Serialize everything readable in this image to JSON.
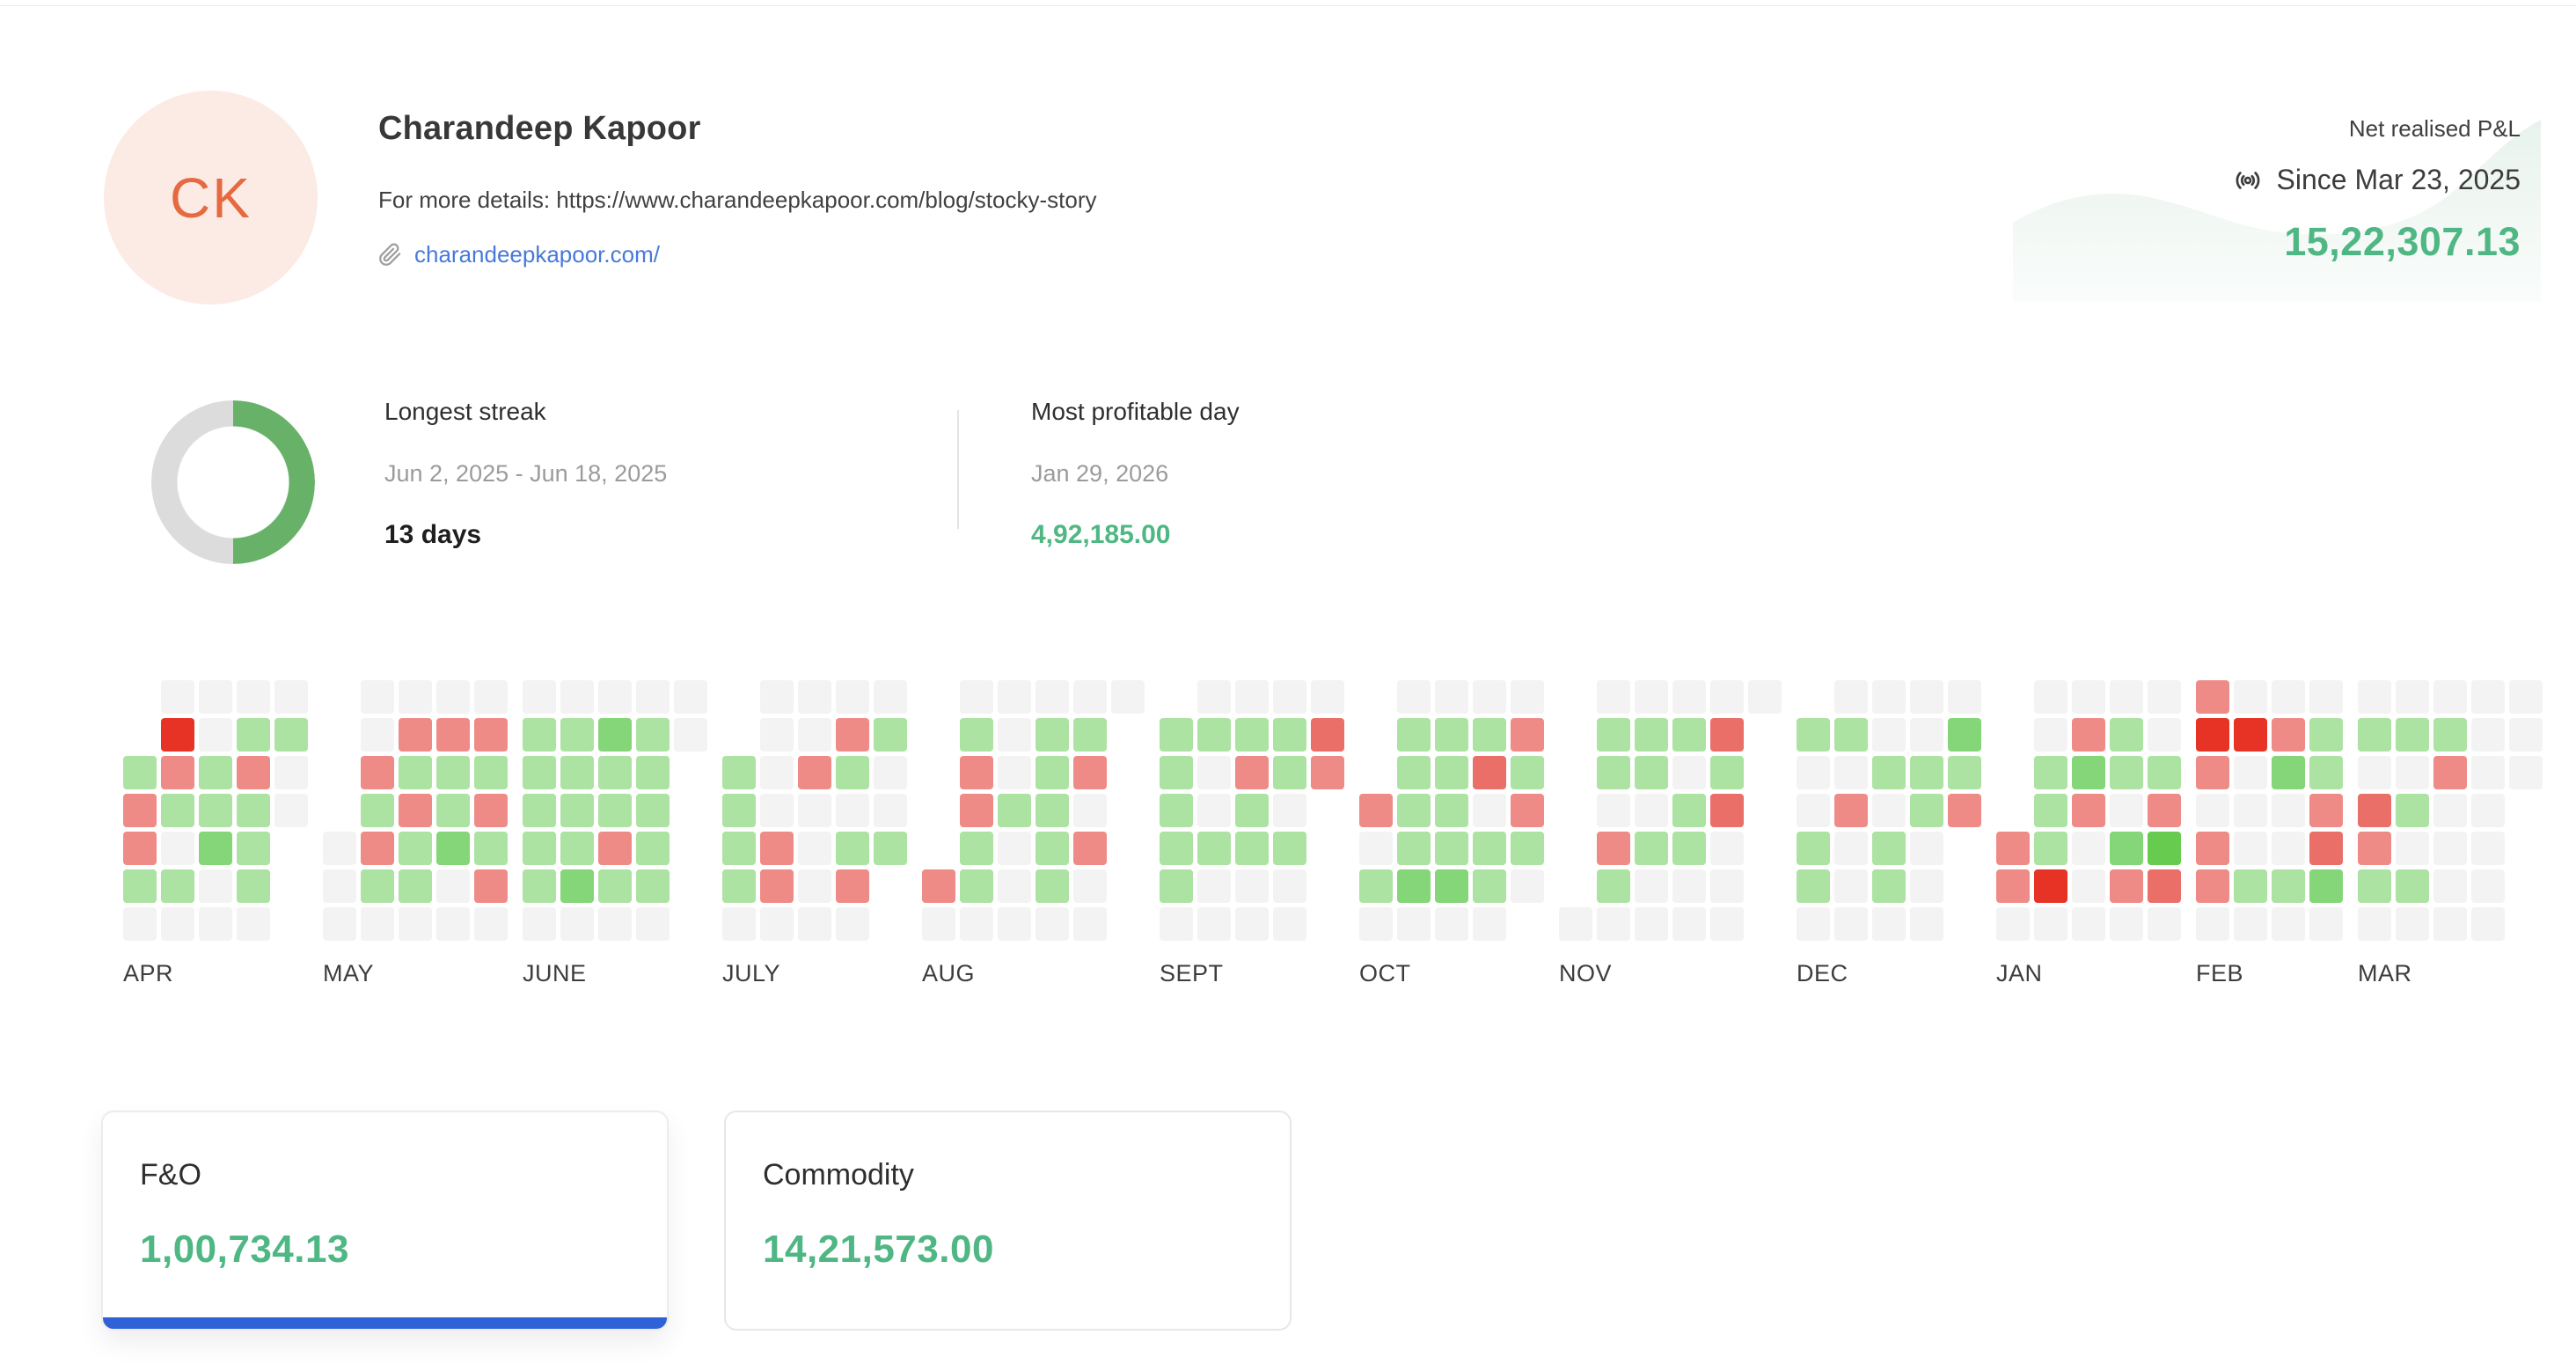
{
  "profile": {
    "initials": "CK",
    "name": "Charandeep Kapoor",
    "details": "For more details: https://www.charandeepkapoor.com/blog/stocky-story",
    "link": "charandeepkapoor.com/"
  },
  "pnl": {
    "label": "Net realised P&L",
    "since": "Since Mar 23, 2025",
    "value": "15,22,307.13"
  },
  "streak": {
    "title": "Longest streak",
    "range": "Jun 2, 2025 - Jun 18, 2025",
    "days": "13 days",
    "donut_percent": 50
  },
  "profitable_day": {
    "title": "Most profitable day",
    "date": "Jan 29, 2026",
    "value": "4,92,185.00"
  },
  "segments": [
    {
      "label": "F&O",
      "value": "1,00,734.13",
      "active": true
    },
    {
      "label": "Commodity",
      "value": "14,21,573.00",
      "active": false
    }
  ],
  "colors": {
    "accent_green": "#4fb783",
    "link_blue": "#4879d9",
    "active_tab_blue": "#2e62d6",
    "avatar_bg": "#fcebe4",
    "avatar_text": "#e56a42",
    "donut_green": "#67b168",
    "donut_gray": "#dcdcdc",
    "muted_text": "#9b9b9b"
  },
  "chart_data": {
    "type": "heatmap",
    "title": "Daily realised P&L calendar, Apr 2025 - Mar 2026",
    "rows_are": "weekdays Sun (top) to Sat (bottom)",
    "columns_are": "weeks, grouped by month",
    "levels": {
      ".": "outside month (blank)",
      "0": "no P&L / non-trading day (#f3f3f3)",
      "1": "small profit (#ace2a2)",
      "2": "medium profit (#85d678)",
      "3": "large profit (#66cb4e)",
      "a": "small loss (#ef8b87)",
      "b": "medium loss (#ea6f69)",
      "c": "large loss (#e73325)"
    },
    "months": [
      {
        "label": "APR",
        "rows": [
          ".0000",
          ".c011",
          "1a1a0",
          "a1110",
          "a021.",
          "1101.",
          "0000."
        ]
      },
      {
        "label": "MAY",
        "rows": [
          ".0000",
          ".0aaa",
          ".a111",
          ".1a1a",
          "0a121",
          "0110a",
          "00000"
        ]
      },
      {
        "label": "JUNE",
        "rows": [
          "00000",
          "11210",
          "1111.",
          "1111.",
          "11a1.",
          "1211.",
          "0000."
        ]
      },
      {
        "label": "JULY",
        "rows": [
          ".0000",
          ".00a1",
          "10a10",
          "10000",
          "1a011",
          "1a0a.",
          "0000."
        ]
      },
      {
        "label": "AUG",
        "rows": [
          ".00000",
          ".1011.",
          ".a01a.",
          ".a110.",
          ".101a.",
          "a1010.",
          "00000."
        ]
      },
      {
        "label": "SEPT",
        "rows": [
          ".0000",
          "1111b",
          "10a1a",
          "1010.",
          "1111.",
          "1000.",
          "0000."
        ]
      },
      {
        "label": "OCT",
        "rows": [
          ".0000",
          ".111a",
          ".11b1",
          "a110a",
          "01111",
          "12210",
          "0000."
        ]
      },
      {
        "label": "NOV",
        "rows": [
          ".00000",
          ".111b.",
          ".1101.",
          ".001b.",
          ".a110.",
          ".1000.",
          "00000."
        ]
      },
      {
        "label": "DEC",
        "rows": [
          ".0000",
          "11002",
          "00111",
          "0a01a",
          "1010.",
          "1010.",
          "0000."
        ]
      },
      {
        "label": "JAN",
        "rows": [
          ".0000",
          ".0a10",
          ".1211",
          ".1a0a",
          "a1023",
          "ac0ab",
          "00000"
        ]
      },
      {
        "label": "FEB",
        "rows": [
          "a000",
          "cca1",
          "a021",
          "000a",
          "a00b",
          "a112",
          "0000"
        ]
      },
      {
        "label": "MAR",
        "rows": [
          "00000",
          "11100",
          "00a00",
          "b100.",
          "a000.",
          "1100.",
          "0000."
        ]
      }
    ]
  }
}
